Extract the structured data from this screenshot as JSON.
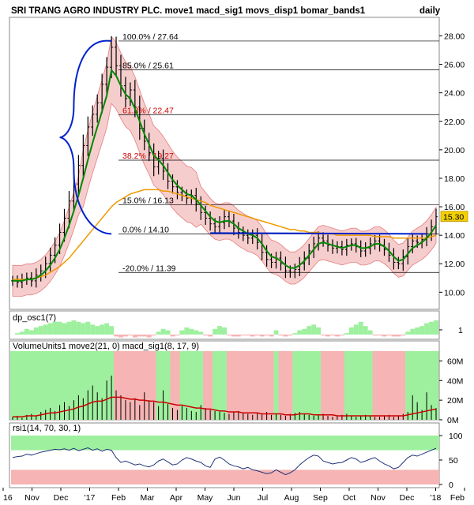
{
  "header": {
    "title": "SRI TRANG AGRO INDUSTRY PLC. move1 macd_sig1 movs_disp1 bomar_bands1",
    "period": "daily"
  },
  "colors": {
    "price_bars": "#000000",
    "green_ma": "#008800",
    "orange_ma": "#ee9a00",
    "band_fill": "#f6c8c8",
    "band_line": "#e07070",
    "blue_lines": "#0022cc",
    "fib_black": "#000000",
    "fib_red": "#cc0000",
    "zone_green": "#9ef09e",
    "zone_red": "#f6b4b4",
    "volume_ma": "#cc0000",
    "rsi_line": "#223377",
    "last_price_box": "#f4d000"
  },
  "chart_data": [
    {
      "type": "candlestick",
      "title": "SRI TRANG AGRO INDUSTRY PLC.",
      "period": "daily",
      "y_ticks": [
        "10.00",
        "12.00",
        "14.00",
        "16.00",
        "18.00",
        "20.00",
        "22.00",
        "24.00",
        "26.00",
        "28.00"
      ],
      "ylim": [
        8.8,
        29.3
      ],
      "last_price": "15.30",
      "x_labels": [
        "16",
        "Nov",
        "Dec",
        "'17",
        "Feb",
        "Mar",
        "Apr",
        "May",
        "Jun",
        "Jul",
        "Aug",
        "Sep",
        "Oct",
        "Nov",
        "Dec",
        "'18",
        "Feb"
      ],
      "close": [
        10.8,
        10.7,
        10.9,
        11.0,
        10.8,
        11.2,
        11.5,
        12.0,
        12.6,
        13.3,
        14.2,
        15.2,
        16.4,
        17.6,
        18.9,
        20.3,
        21.6,
        22.5,
        23.3,
        24.6,
        25.8,
        27.2,
        25.9,
        24.5,
        23.6,
        24.2,
        23.0,
        21.5,
        20.6,
        19.8,
        18.8,
        19.4,
        18.5,
        17.8,
        17.4,
        17.0,
        16.8,
        16.6,
        16.8,
        16.2,
        15.6,
        15.2,
        14.8,
        14.6,
        14.9,
        15.3,
        15.0,
        14.5,
        14.2,
        14.0,
        13.8,
        14.0,
        13.5,
        12.8,
        12.3,
        12.1,
        12.4,
        12.0,
        11.5,
        11.4,
        11.6,
        12.0,
        12.4,
        12.9,
        13.4,
        13.8,
        13.6,
        13.3,
        13.1,
        13.2,
        13.0,
        13.3,
        13.4,
        13.2,
        12.9,
        13.1,
        13.4,
        13.6,
        13.3,
        13.0,
        12.6,
        12.1,
        12.0,
        12.5,
        13.2,
        13.6,
        13.5,
        13.7,
        14.1,
        14.6,
        15.3
      ],
      "ma_fast": [
        10.8,
        10.8,
        10.8,
        10.9,
        10.9,
        11.0,
        11.2,
        11.5,
        11.9,
        12.4,
        13.0,
        13.8,
        14.7,
        15.7,
        16.8,
        18.0,
        19.3,
        20.5,
        21.6,
        22.7,
        23.8,
        25.6,
        25.2,
        24.5,
        23.9,
        23.6,
        22.9,
        22.0,
        21.1,
        20.4,
        19.6,
        19.3,
        18.9,
        18.4,
        17.9,
        17.5,
        17.2,
        16.9,
        16.8,
        16.5,
        16.1,
        15.7,
        15.3,
        15.0,
        14.9,
        15.0,
        15.0,
        14.8,
        14.5,
        14.3,
        14.1,
        14.0,
        13.8,
        13.4,
        12.9,
        12.5,
        12.4,
        12.2,
        11.9,
        11.7,
        11.7,
        11.9,
        12.2,
        12.6,
        13.0,
        13.4,
        13.5,
        13.4,
        13.3,
        13.2,
        13.1,
        13.2,
        13.3,
        13.3,
        13.1,
        13.1,
        13.2,
        13.4,
        13.4,
        13.2,
        12.9,
        12.5,
        12.2,
        12.3,
        12.7,
        13.1,
        13.3,
        13.5,
        13.8,
        14.2,
        14.7
      ],
      "ma_slow_orange": [
        10.9,
        10.9,
        10.9,
        10.9,
        10.9,
        11.0,
        11.1,
        11.2,
        11.4,
        11.6,
        11.8,
        12.1,
        12.4,
        12.8,
        13.2,
        13.6,
        14.0,
        14.4,
        14.8,
        15.2,
        15.6,
        16.0,
        16.3,
        16.5,
        16.7,
        16.9,
        17.0,
        17.1,
        17.2,
        17.2,
        17.2,
        17.2,
        17.1,
        17.1,
        17.0,
        16.9,
        16.8,
        16.7,
        16.6,
        16.5,
        16.4,
        16.3,
        16.1,
        16.0,
        15.9,
        15.8,
        15.7,
        15.6,
        15.5,
        15.4,
        15.3,
        15.2,
        15.1,
        15.0,
        14.9,
        14.8,
        14.7,
        14.6,
        14.5,
        14.4,
        14.4,
        14.3,
        14.3,
        14.2,
        14.2,
        14.2,
        14.1,
        14.1,
        14.1,
        14.0,
        14.0,
        14.0,
        14.0,
        14.0,
        14.0,
        14.0,
        14.0,
        13.9,
        13.9,
        13.9,
        13.9,
        13.8,
        13.8,
        13.8,
        13.8,
        13.8,
        13.8,
        13.8,
        13.8,
        13.9,
        14.0
      ],
      "fibonacci_levels": [
        {
          "label": "100.0% / 27.64",
          "price": 27.64,
          "color": "black"
        },
        {
          "label": "85.0% / 25.61",
          "price": 25.61,
          "color": "black"
        },
        {
          "label": "61.8% / 22.47",
          "price": 22.47,
          "color": "red"
        },
        {
          "label": "38.2% / 19.27",
          "price": 19.27,
          "color": "red"
        },
        {
          "label": "15.0% / 16.13",
          "price": 16.13,
          "color": "black"
        },
        {
          "label": "0.0% / 14.10",
          "price": 14.1,
          "color": "black"
        },
        {
          "label": "-20.0% / 11.39",
          "price": 11.39,
          "color": "black"
        }
      ],
      "support_line_price": 14.1
    },
    {
      "type": "bar",
      "title": "dp_osc1(7)",
      "y_ticks": [
        "1"
      ],
      "values": [
        0,
        0.1,
        0.2,
        0.4,
        0.3,
        0.5,
        0.6,
        0.7,
        0.8,
        0.9,
        0.9,
        0.8,
        0.9,
        1.0,
        0.9,
        0.8,
        0.9,
        0.7,
        0.6,
        0.7,
        0.8,
        0.6,
        -0.2,
        -0.3,
        -0.2,
        -0.1,
        -0.3,
        -0.2,
        -0.2,
        -0.3,
        -0.1,
        0.2,
        0.4,
        0.3,
        -0.2,
        -0.1,
        0.3,
        0.5,
        0.4,
        0.3,
        0.2,
        -0.1,
        -0.2,
        0.4,
        0.6,
        0.5,
        -0.1,
        -0.2,
        -0.2,
        -0.1,
        -0.1,
        -0.2,
        -0.1,
        -0.2,
        -0.1,
        -0.2,
        0.3,
        -0.1,
        -0.2,
        -0.1,
        0.1,
        0.3,
        0.4,
        0.6,
        0.7,
        0.5,
        -0.1,
        -0.2,
        -0.1,
        -0.2,
        -0.1,
        0.1,
        0.5,
        0.7,
        0.9,
        0.6,
        0.3,
        -0.1,
        -0.1,
        -0.2,
        -0.1,
        -0.2,
        -0.2,
        -0.1,
        0.2,
        0.4,
        0.5,
        0.6,
        0.8,
        0.9,
        1.0
      ]
    },
    {
      "type": "bar",
      "title": "VolumeUnits1 move2(21, 0) macd_sig1(8, 17, 9)",
      "y_ticks": [
        "0M",
        "20M",
        "40M",
        "60M"
      ],
      "ylim": [
        0,
        70
      ],
      "values": [
        3,
        4,
        2,
        5,
        6,
        4,
        8,
        10,
        12,
        9,
        15,
        18,
        14,
        20,
        25,
        22,
        30,
        35,
        28,
        22,
        40,
        45,
        30,
        25,
        20,
        18,
        22,
        15,
        28,
        20,
        18,
        14,
        30,
        16,
        12,
        10,
        14,
        12,
        9,
        8,
        15,
        12,
        10,
        9,
        8,
        7,
        6,
        8,
        9,
        7,
        6,
        5,
        7,
        6,
        8,
        5,
        6,
        5,
        4,
        6,
        7,
        8,
        6,
        5,
        4,
        5,
        6,
        4,
        3,
        4,
        5,
        6,
        4,
        3,
        4,
        5,
        4,
        3,
        3,
        4,
        5,
        3,
        4,
        6,
        8,
        25,
        18,
        10,
        28,
        15,
        12
      ],
      "moving_average": [
        3,
        3,
        3,
        4,
        4,
        4,
        5,
        6,
        7,
        7,
        8,
        9,
        10,
        11,
        13,
        14,
        16,
        18,
        19,
        19,
        21,
        23,
        23,
        23,
        22,
        21,
        21,
        20,
        20,
        19,
        19,
        18,
        18,
        17,
        16,
        15,
        15,
        14,
        13,
        12,
        12,
        11,
        11,
        10,
        9,
        9,
        8,
        8,
        8,
        7,
        7,
        7,
        7,
        6,
        6,
        6,
        6,
        6,
        5,
        5,
        5,
        6,
        6,
        6,
        5,
        5,
        5,
        5,
        5,
        4,
        4,
        4,
        4,
        4,
        4,
        4,
        4,
        4,
        4,
        4,
        4,
        4,
        4,
        4,
        5,
        6,
        7,
        8,
        9,
        10,
        11
      ],
      "zones": [
        "green",
        "green",
        "green",
        "green",
        "green",
        "green",
        "green",
        "green",
        "green",
        "green",
        "green",
        "green",
        "green",
        "green",
        "green",
        "green",
        "green",
        "green",
        "green",
        "green",
        "green",
        "green",
        "red",
        "red",
        "red",
        "red",
        "red",
        "red",
        "red",
        "red",
        "red",
        "green",
        "green",
        "green",
        "red",
        "red",
        "green",
        "green",
        "green",
        "green",
        "green",
        "red",
        "red",
        "green",
        "green",
        "green",
        "red",
        "red",
        "red",
        "red",
        "red",
        "red",
        "red",
        "red",
        "red",
        "red",
        "green",
        "red",
        "red",
        "red",
        "green",
        "green",
        "green",
        "green",
        "green",
        "green",
        "red",
        "red",
        "red",
        "red",
        "red",
        "green",
        "green",
        "green",
        "green",
        "green",
        "green",
        "red",
        "red",
        "red",
        "red",
        "red",
        "red",
        "red",
        "green",
        "green",
        "green",
        "green",
        "green",
        "green",
        "green"
      ]
    },
    {
      "type": "line",
      "title": "rsi1(14, 70, 30, 1)",
      "y_ticks": [
        "0",
        "50",
        "100"
      ],
      "ylim": [
        0,
        100
      ],
      "values": [
        55,
        57,
        58,
        62,
        60,
        63,
        66,
        68,
        70,
        72,
        71,
        73,
        70,
        74,
        69,
        72,
        75,
        70,
        73,
        68,
        72,
        70,
        55,
        45,
        48,
        44,
        40,
        42,
        38,
        36,
        40,
        48,
        52,
        46,
        40,
        42,
        50,
        55,
        52,
        48,
        45,
        38,
        35,
        52,
        56,
        50,
        42,
        38,
        36,
        32,
        35,
        30,
        28,
        25,
        22,
        24,
        30,
        25,
        20,
        24,
        30,
        40,
        48,
        55,
        60,
        58,
        48,
        45,
        42,
        44,
        45,
        50,
        55,
        52,
        45,
        48,
        52,
        55,
        48,
        42,
        38,
        32,
        35,
        45,
        55,
        60,
        58,
        62,
        66,
        70,
        74
      ]
    }
  ]
}
